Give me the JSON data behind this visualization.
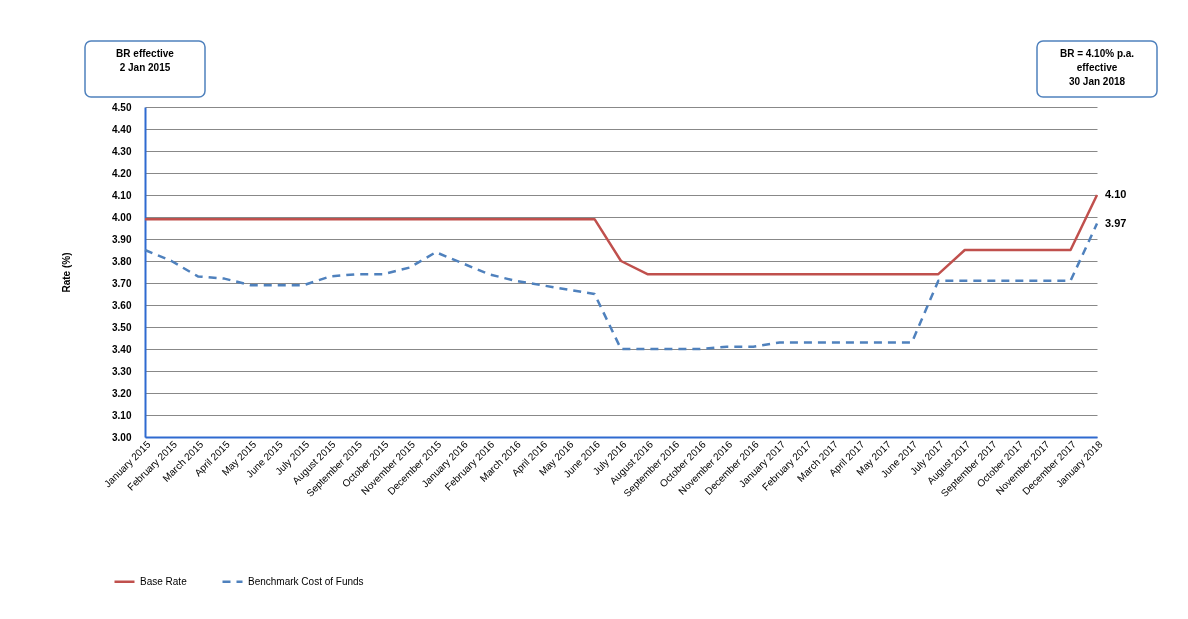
{
  "chart_data": {
    "type": "line",
    "ylabel": "Rate (%)",
    "categories": [
      "January 2015",
      "February 2015",
      "March 2015",
      "April 2015",
      "May 2015",
      "June 2015",
      "July 2015",
      "August 2015",
      "September 2015",
      "October 2015",
      "November 2015",
      "December 2015",
      "January 2016",
      "February 2016",
      "March 2016",
      "April 2016",
      "May 2016",
      "June 2016",
      "July 2016",
      "August 2016",
      "September 2016",
      "October 2016",
      "November 2016",
      "December 2016",
      "January 2017",
      "February 2017",
      "March 2017",
      "April 2017",
      "May 2017",
      "June 2017",
      "July 2017",
      "August 2017",
      "September 2017",
      "October 2017",
      "November 2017",
      "December 2017",
      "January 2018"
    ],
    "series": [
      {
        "name": "Base Rate",
        "color": "#c0504d",
        "line_style": "solid",
        "values": [
          3.99,
          3.99,
          3.99,
          3.99,
          3.99,
          3.99,
          3.99,
          3.99,
          3.99,
          3.99,
          3.99,
          3.99,
          3.99,
          3.99,
          3.99,
          3.99,
          3.99,
          3.99,
          3.8,
          3.74,
          3.74,
          3.74,
          3.74,
          3.74,
          3.74,
          3.74,
          3.74,
          3.74,
          3.74,
          3.74,
          3.74,
          3.85,
          3.85,
          3.85,
          3.85,
          3.85,
          4.1
        ],
        "value_labels": [
          null,
          null,
          null,
          null,
          null,
          null,
          null,
          null,
          null,
          null,
          null,
          null,
          null,
          null,
          null,
          null,
          null,
          null,
          null,
          null,
          null,
          null,
          null,
          null,
          null,
          null,
          null,
          null,
          null,
          null,
          null,
          null,
          null,
          null,
          null,
          null,
          "4.10"
        ]
      },
      {
        "name": "Benchmark Cost of Funds",
        "color": "#4f81bd",
        "line_style": "dashed",
        "values": [
          3.85,
          3.8,
          3.73,
          3.72,
          3.69,
          3.69,
          3.69,
          3.73,
          3.74,
          3.74,
          3.77,
          3.84,
          3.79,
          3.74,
          3.71,
          3.69,
          3.67,
          3.65,
          3.4,
          3.4,
          3.4,
          3.4,
          3.41,
          3.41,
          3.43,
          3.43,
          3.43,
          3.43,
          3.43,
          3.43,
          3.71,
          3.71,
          3.71,
          3.71,
          3.71,
          3.71,
          3.97
        ],
        "value_labels": [
          null,
          null,
          null,
          null,
          null,
          null,
          null,
          null,
          null,
          null,
          null,
          null,
          null,
          null,
          null,
          null,
          null,
          null,
          null,
          null,
          null,
          null,
          null,
          null,
          null,
          null,
          null,
          null,
          null,
          null,
          null,
          null,
          null,
          null,
          null,
          null,
          "3.97"
        ]
      }
    ],
    "ylim": [
      3,
      4.5
    ],
    "yticks": [
      {
        "value": 3,
        "label": "3.00"
      },
      {
        "value": 3.1,
        "label": "3.10"
      },
      {
        "value": 3.2,
        "label": "3.20"
      },
      {
        "value": 3.3,
        "label": "3.30"
      },
      {
        "value": 3.4,
        "label": "3.40"
      },
      {
        "value": 3.5,
        "label": "3.50"
      },
      {
        "value": 3.6,
        "label": "3.60"
      },
      {
        "value": 3.7,
        "label": "3.70"
      },
      {
        "value": 3.8,
        "label": "3.80"
      },
      {
        "value": 3.9,
        "label": "3.90"
      },
      {
        "value": 4,
        "label": "4.00"
      },
      {
        "value": 4.1,
        "label": "4.10"
      },
      {
        "value": 4.2,
        "label": "4.20"
      },
      {
        "value": 4.3,
        "label": "4.30"
      },
      {
        "value": 4.4,
        "label": "4.40"
      },
      {
        "value": 4.5,
        "label": "4.50"
      }
    ],
    "grid": "y",
    "legend": "bottom left",
    "annotations": [
      "BR effective\n2 Jan 2015",
      "BR = 4.10% p.a.\neffective\n30 Jan 2018"
    ]
  }
}
